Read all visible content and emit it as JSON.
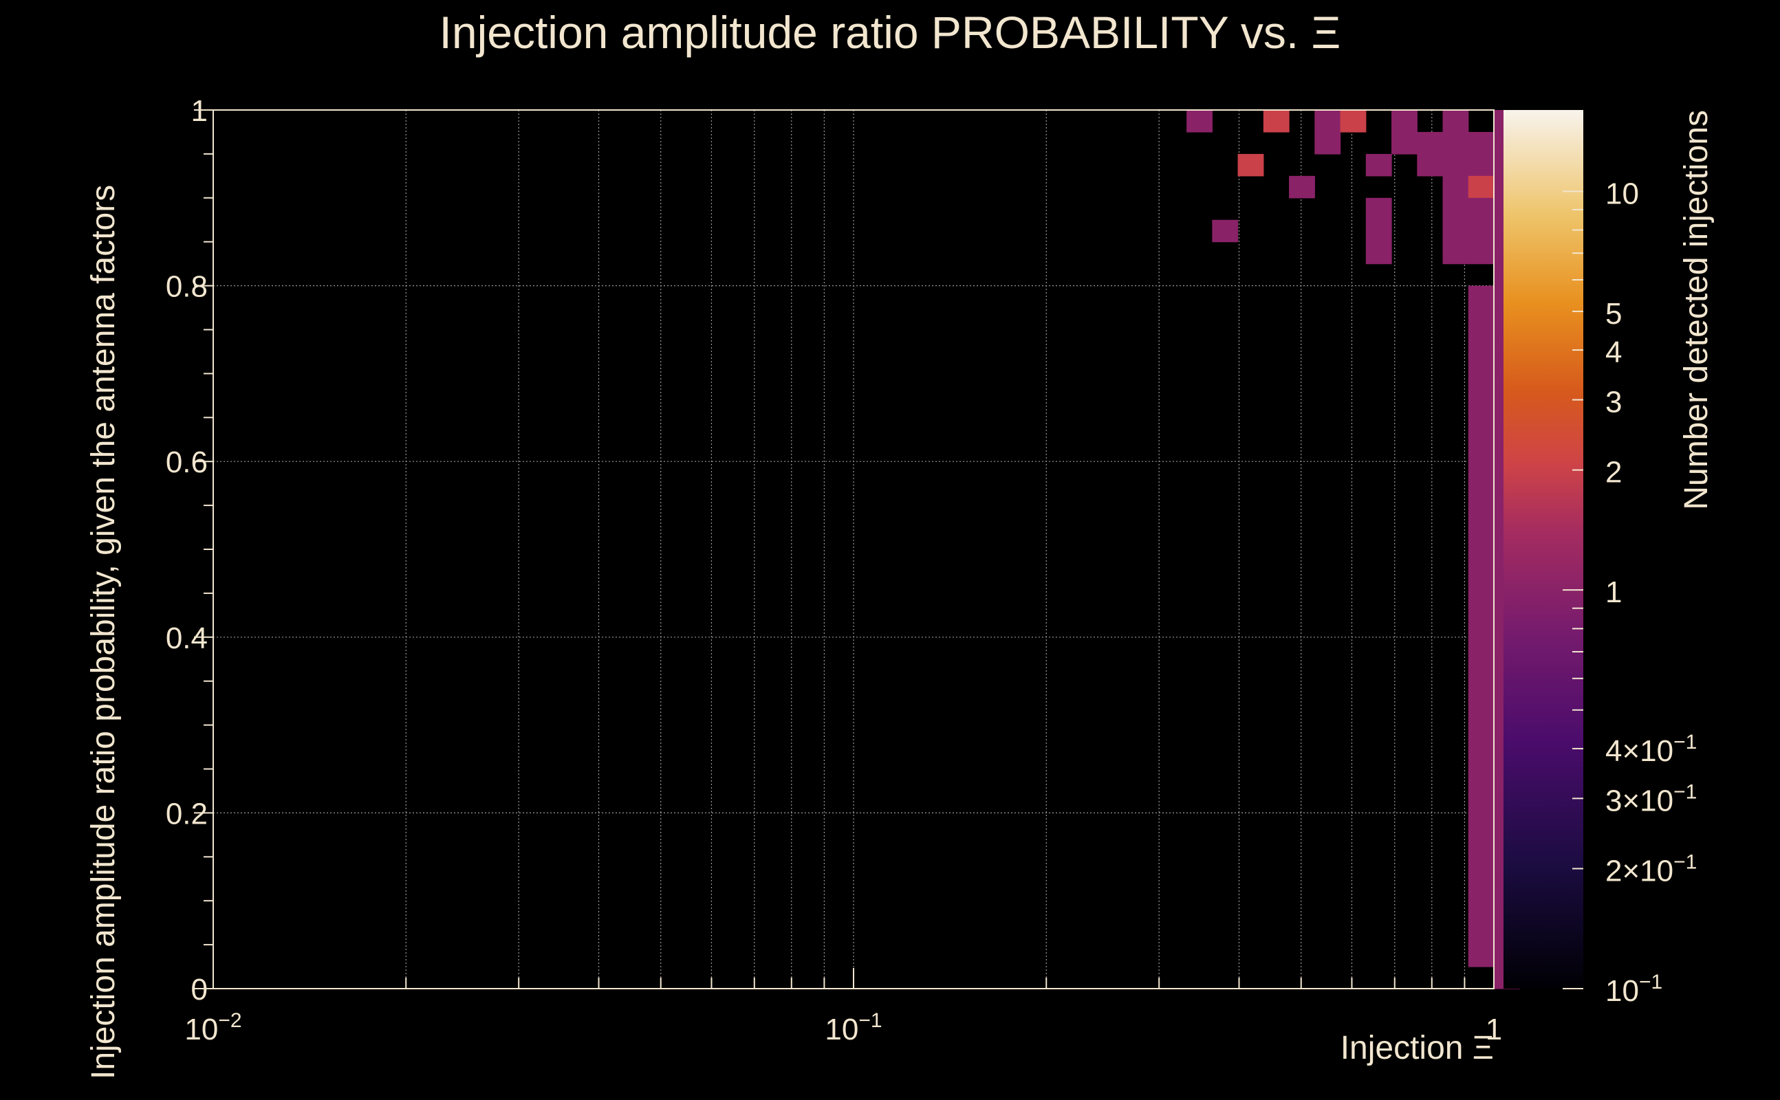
{
  "chart_data": {
    "type": "heatmap",
    "title": "Injection amplitude ratio PROBABILITY vs.  Ξ",
    "xlabel": "Injection Ξ",
    "ylabel": "Injection amplitude ratio probability, given the antenna factors",
    "zlabel": "Number detected injections",
    "x_scale": "log",
    "z_scale": "log",
    "xlim": [
      0.01,
      1
    ],
    "ylim": [
      0,
      1
    ],
    "zlim": [
      0.1,
      16
    ],
    "x_bins_log_start": -2,
    "x_bins_per_decade": 25,
    "y_bin_width": 0.025,
    "y_ticks": [
      "0",
      "0.2",
      "0.4",
      "0.6",
      "0.8",
      "1"
    ],
    "x_ticks": [
      {
        "base": "10",
        "exp": "−2"
      },
      {
        "base": "10",
        "exp": "−1"
      },
      {
        "base": "1",
        "exp": ""
      }
    ],
    "z_ticks": [
      {
        "value": 10,
        "base": "10",
        "exp": ""
      },
      {
        "value": 5,
        "base": "5",
        "exp": ""
      },
      {
        "value": 4,
        "base": "4",
        "exp": ""
      },
      {
        "value": 3,
        "base": "3",
        "exp": ""
      },
      {
        "value": 2,
        "base": "2",
        "exp": ""
      },
      {
        "value": 1,
        "base": "1",
        "exp": ""
      },
      {
        "value": 0.4,
        "base": "4×10",
        "exp": "−1"
      },
      {
        "value": 0.3,
        "base": "3×10",
        "exp": "−1"
      },
      {
        "value": 0.2,
        "base": "2×10",
        "exp": "−1"
      },
      {
        "value": 0.1,
        "base": "10",
        "exp": "−1"
      }
    ],
    "cells": [
      [
        38,
        39,
        1
      ],
      [
        39,
        34,
        1
      ],
      [
        40,
        37,
        2
      ],
      [
        41,
        39,
        2
      ],
      [
        42,
        36,
        1
      ],
      [
        43,
        39,
        1
      ],
      [
        43,
        38,
        1
      ],
      [
        44,
        39,
        2
      ],
      [
        45,
        37,
        1
      ],
      [
        45,
        35,
        1
      ],
      [
        45,
        34,
        1
      ],
      [
        45,
        33,
        1
      ],
      [
        46,
        39,
        1
      ],
      [
        46,
        38,
        1
      ],
      [
        47,
        38,
        1
      ],
      [
        47,
        37,
        1
      ],
      [
        48,
        39,
        1
      ],
      [
        48,
        38,
        1
      ],
      [
        48,
        37,
        1
      ],
      [
        48,
        36,
        1
      ],
      [
        48,
        35,
        1
      ],
      [
        48,
        34,
        1
      ],
      [
        48,
        33,
        1
      ],
      [
        49,
        38,
        1
      ],
      [
        49,
        37,
        1
      ],
      [
        49,
        36,
        2
      ],
      [
        49,
        35,
        1
      ],
      [
        49,
        34,
        1
      ],
      [
        49,
        33,
        1
      ],
      [
        49,
        31,
        1
      ],
      [
        49,
        30,
        1
      ],
      [
        49,
        29,
        1
      ],
      [
        49,
        28,
        1
      ],
      [
        49,
        27,
        1
      ],
      [
        49,
        26,
        1
      ],
      [
        49,
        25,
        1
      ],
      [
        49,
        24,
        1
      ],
      [
        49,
        23,
        1
      ],
      [
        49,
        22,
        1
      ],
      [
        49,
        21,
        1
      ],
      [
        49,
        20,
        1
      ],
      [
        49,
        19,
        1
      ],
      [
        49,
        18,
        1
      ],
      [
        49,
        17,
        1
      ],
      [
        49,
        16,
        1
      ],
      [
        49,
        15,
        1
      ],
      [
        49,
        14,
        1
      ],
      [
        49,
        13,
        1
      ],
      [
        49,
        12,
        1
      ],
      [
        49,
        11,
        1
      ],
      [
        49,
        10,
        1
      ],
      [
        49,
        9,
        1
      ],
      [
        49,
        8,
        1
      ],
      [
        49,
        7,
        1
      ],
      [
        49,
        6,
        1
      ],
      [
        49,
        5,
        1
      ],
      [
        49,
        4,
        1
      ],
      [
        49,
        3,
        1
      ],
      [
        49,
        2,
        1
      ],
      [
        49,
        1,
        1
      ],
      [
        50,
        39,
        1
      ],
      [
        50,
        38,
        1
      ],
      [
        50,
        37,
        1
      ],
      [
        50,
        36,
        1
      ],
      [
        50,
        35,
        1
      ],
      [
        50,
        34,
        1
      ],
      [
        50,
        33,
        1
      ],
      [
        50,
        32,
        1
      ],
      [
        50,
        31,
        1
      ],
      [
        50,
        30,
        1
      ],
      [
        50,
        29,
        1
      ],
      [
        50,
        28,
        1
      ],
      [
        50,
        27,
        1
      ],
      [
        50,
        26,
        1
      ],
      [
        50,
        25,
        1
      ],
      [
        50,
        24,
        1
      ],
      [
        50,
        23,
        1
      ],
      [
        50,
        22,
        1
      ],
      [
        50,
        21,
        1
      ],
      [
        50,
        20,
        1
      ],
      [
        50,
        19,
        1
      ],
      [
        50,
        18,
        1
      ],
      [
        50,
        17,
        1
      ],
      [
        50,
        16,
        1
      ],
      [
        50,
        15,
        1
      ],
      [
        50,
        14,
        1
      ],
      [
        50,
        13,
        1
      ],
      [
        50,
        12,
        1
      ],
      [
        50,
        11,
        1
      ],
      [
        50,
        10,
        1
      ],
      [
        50,
        9,
        1
      ],
      [
        50,
        8,
        1
      ],
      [
        50,
        7,
        1
      ],
      [
        50,
        6,
        1
      ],
      [
        50,
        5,
        1
      ],
      [
        50,
        4,
        1
      ],
      [
        50,
        3,
        1
      ],
      [
        50,
        2,
        1
      ],
      [
        50,
        1,
        1
      ],
      [
        50,
        0,
        1
      ]
    ]
  }
}
